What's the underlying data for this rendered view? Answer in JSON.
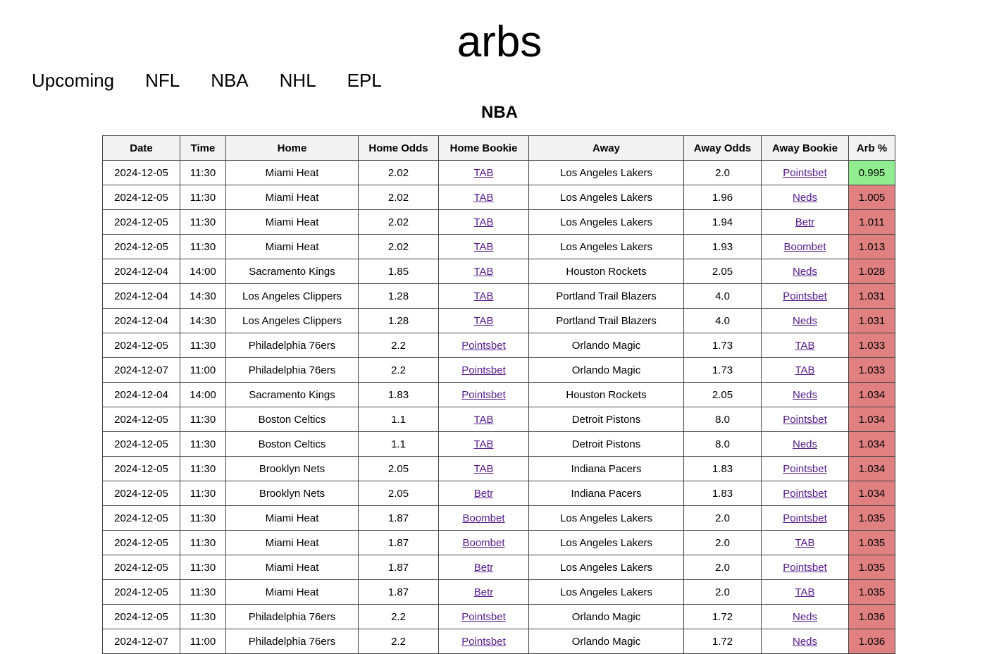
{
  "site": {
    "title": "arbs"
  },
  "nav": {
    "items": [
      {
        "label": "Upcoming"
      },
      {
        "label": "NFL"
      },
      {
        "label": "NBA"
      },
      {
        "label": "NHL"
      },
      {
        "label": "EPL"
      }
    ]
  },
  "section": {
    "title": "NBA"
  },
  "colors": {
    "profitable": "#90ee90",
    "unprofitable": "#e08080",
    "link": "#551a8b"
  },
  "table": {
    "columns": [
      "Date",
      "Time",
      "Home",
      "Home Odds",
      "Home Bookie",
      "Away",
      "Away Odds",
      "Away Bookie",
      "Arb %"
    ],
    "rows": [
      {
        "date": "2024-12-05",
        "time": "11:30",
        "home": "Miami Heat",
        "home_odds": "2.02",
        "home_bookie": "TAB",
        "away": "Los Angeles Lakers",
        "away_odds": "2.0",
        "away_bookie": "Pointsbet",
        "arb": "0.995",
        "status": "good"
      },
      {
        "date": "2024-12-05",
        "time": "11:30",
        "home": "Miami Heat",
        "home_odds": "2.02",
        "home_bookie": "TAB",
        "away": "Los Angeles Lakers",
        "away_odds": "1.96",
        "away_bookie": "Neds",
        "arb": "1.005",
        "status": "bad"
      },
      {
        "date": "2024-12-05",
        "time": "11:30",
        "home": "Miami Heat",
        "home_odds": "2.02",
        "home_bookie": "TAB",
        "away": "Los Angeles Lakers",
        "away_odds": "1.94",
        "away_bookie": "Betr",
        "arb": "1.011",
        "status": "bad"
      },
      {
        "date": "2024-12-05",
        "time": "11:30",
        "home": "Miami Heat",
        "home_odds": "2.02",
        "home_bookie": "TAB",
        "away": "Los Angeles Lakers",
        "away_odds": "1.93",
        "away_bookie": "Boombet",
        "arb": "1.013",
        "status": "bad"
      },
      {
        "date": "2024-12-04",
        "time": "14:00",
        "home": "Sacramento Kings",
        "home_odds": "1.85",
        "home_bookie": "TAB",
        "away": "Houston Rockets",
        "away_odds": "2.05",
        "away_bookie": "Neds",
        "arb": "1.028",
        "status": "bad"
      },
      {
        "date": "2024-12-04",
        "time": "14:30",
        "home": "Los Angeles Clippers",
        "home_odds": "1.28",
        "home_bookie": "TAB",
        "away": "Portland Trail Blazers",
        "away_odds": "4.0",
        "away_bookie": "Pointsbet",
        "arb": "1.031",
        "status": "bad"
      },
      {
        "date": "2024-12-04",
        "time": "14:30",
        "home": "Los Angeles Clippers",
        "home_odds": "1.28",
        "home_bookie": "TAB",
        "away": "Portland Trail Blazers",
        "away_odds": "4.0",
        "away_bookie": "Neds",
        "arb": "1.031",
        "status": "bad"
      },
      {
        "date": "2024-12-05",
        "time": "11:30",
        "home": "Philadelphia 76ers",
        "home_odds": "2.2",
        "home_bookie": "Pointsbet",
        "away": "Orlando Magic",
        "away_odds": "1.73",
        "away_bookie": "TAB",
        "arb": "1.033",
        "status": "bad"
      },
      {
        "date": "2024-12-07",
        "time": "11:00",
        "home": "Philadelphia 76ers",
        "home_odds": "2.2",
        "home_bookie": "Pointsbet",
        "away": "Orlando Magic",
        "away_odds": "1.73",
        "away_bookie": "TAB",
        "arb": "1.033",
        "status": "bad"
      },
      {
        "date": "2024-12-04",
        "time": "14:00",
        "home": "Sacramento Kings",
        "home_odds": "1.83",
        "home_bookie": "Pointsbet",
        "away": "Houston Rockets",
        "away_odds": "2.05",
        "away_bookie": "Neds",
        "arb": "1.034",
        "status": "bad"
      },
      {
        "date": "2024-12-05",
        "time": "11:30",
        "home": "Boston Celtics",
        "home_odds": "1.1",
        "home_bookie": "TAB",
        "away": "Detroit Pistons",
        "away_odds": "8.0",
        "away_bookie": "Pointsbet",
        "arb": "1.034",
        "status": "bad"
      },
      {
        "date": "2024-12-05",
        "time": "11:30",
        "home": "Boston Celtics",
        "home_odds": "1.1",
        "home_bookie": "TAB",
        "away": "Detroit Pistons",
        "away_odds": "8.0",
        "away_bookie": "Neds",
        "arb": "1.034",
        "status": "bad"
      },
      {
        "date": "2024-12-05",
        "time": "11:30",
        "home": "Brooklyn Nets",
        "home_odds": "2.05",
        "home_bookie": "TAB",
        "away": "Indiana Pacers",
        "away_odds": "1.83",
        "away_bookie": "Pointsbet",
        "arb": "1.034",
        "status": "bad"
      },
      {
        "date": "2024-12-05",
        "time": "11:30",
        "home": "Brooklyn Nets",
        "home_odds": "2.05",
        "home_bookie": "Betr",
        "away": "Indiana Pacers",
        "away_odds": "1.83",
        "away_bookie": "Pointsbet",
        "arb": "1.034",
        "status": "bad"
      },
      {
        "date": "2024-12-05",
        "time": "11:30",
        "home": "Miami Heat",
        "home_odds": "1.87",
        "home_bookie": "Boombet",
        "away": "Los Angeles Lakers",
        "away_odds": "2.0",
        "away_bookie": "Pointsbet",
        "arb": "1.035",
        "status": "bad"
      },
      {
        "date": "2024-12-05",
        "time": "11:30",
        "home": "Miami Heat",
        "home_odds": "1.87",
        "home_bookie": "Boombet",
        "away": "Los Angeles Lakers",
        "away_odds": "2.0",
        "away_bookie": "TAB",
        "arb": "1.035",
        "status": "bad"
      },
      {
        "date": "2024-12-05",
        "time": "11:30",
        "home": "Miami Heat",
        "home_odds": "1.87",
        "home_bookie": "Betr",
        "away": "Los Angeles Lakers",
        "away_odds": "2.0",
        "away_bookie": "Pointsbet",
        "arb": "1.035",
        "status": "bad"
      },
      {
        "date": "2024-12-05",
        "time": "11:30",
        "home": "Miami Heat",
        "home_odds": "1.87",
        "home_bookie": "Betr",
        "away": "Los Angeles Lakers",
        "away_odds": "2.0",
        "away_bookie": "TAB",
        "arb": "1.035",
        "status": "bad"
      },
      {
        "date": "2024-12-05",
        "time": "11:30",
        "home": "Philadelphia 76ers",
        "home_odds": "2.2",
        "home_bookie": "Pointsbet",
        "away": "Orlando Magic",
        "away_odds": "1.72",
        "away_bookie": "Neds",
        "arb": "1.036",
        "status": "bad"
      },
      {
        "date": "2024-12-07",
        "time": "11:00",
        "home": "Philadelphia 76ers",
        "home_odds": "2.2",
        "home_bookie": "Pointsbet",
        "away": "Orlando Magic",
        "away_odds": "1.72",
        "away_bookie": "Neds",
        "arb": "1.036",
        "status": "bad"
      }
    ]
  }
}
